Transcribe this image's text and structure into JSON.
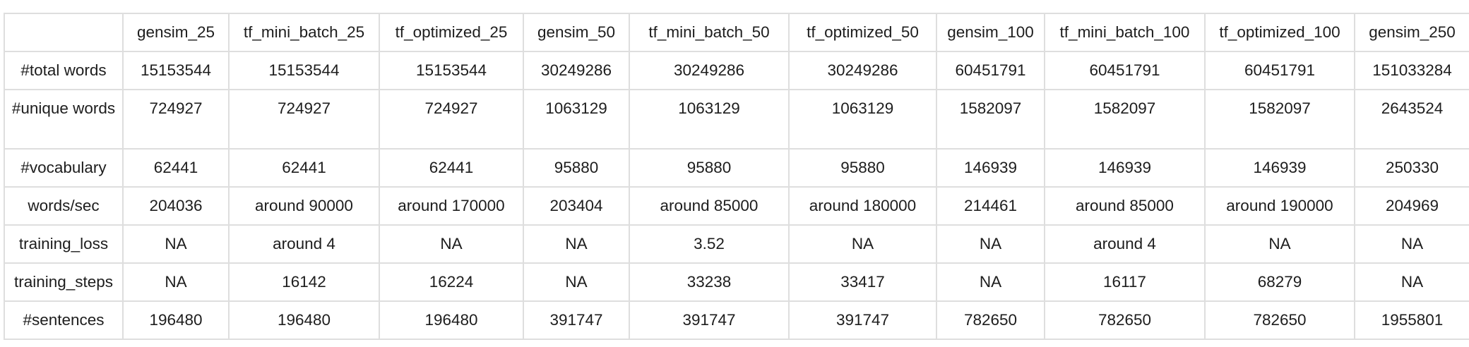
{
  "table": {
    "corner": "",
    "columns": [
      "gensim_25",
      "tf_mini_batch_25",
      "tf_optimized_25",
      "gensim_50",
      "tf_mini_batch_50",
      "tf_optimized_50",
      "gensim_100",
      "tf_mini_batch_100",
      "tf_optimized_100",
      "gensim_250",
      ""
    ],
    "rows": [
      {
        "label": "#total words",
        "cells": [
          "15153544",
          "15153544",
          "15153544",
          "30249286",
          "30249286",
          "30249286",
          "60451791",
          "60451791",
          "60451791",
          "151033284",
          ""
        ]
      },
      {
        "label": "#unique words",
        "cells": [
          "724927",
          "724927",
          "724927",
          "1063129",
          "1063129",
          "1063129",
          "1582097",
          "1582097",
          "1582097",
          "2643524",
          ""
        ]
      },
      {
        "label": "#vocabulary",
        "cells": [
          "62441",
          "62441",
          "62441",
          "95880",
          "95880",
          "95880",
          "146939",
          "146939",
          "146939",
          "250330",
          ""
        ]
      },
      {
        "label": "words/sec",
        "cells": [
          "204036",
          "around 90000",
          "around 170000",
          "203404",
          "around 85000",
          "around 180000",
          "214461",
          "around 85000",
          "around 190000",
          "204969",
          ""
        ]
      },
      {
        "label": "training_loss",
        "cells": [
          "NA",
          "around 4",
          "NA",
          "NA",
          "3.52",
          "NA",
          "NA",
          "around 4",
          "NA",
          "NA",
          ""
        ]
      },
      {
        "label": "training_steps",
        "cells": [
          "NA",
          "16142",
          "16224",
          "NA",
          "33238",
          "33417",
          "NA",
          "16117",
          "68279",
          "NA",
          ""
        ]
      },
      {
        "label": "#sentences",
        "cells": [
          "196480",
          "196480",
          "196480",
          "391747",
          "391747",
          "391747",
          "782650",
          "782650",
          "782650",
          "1955801",
          ""
        ]
      }
    ]
  }
}
